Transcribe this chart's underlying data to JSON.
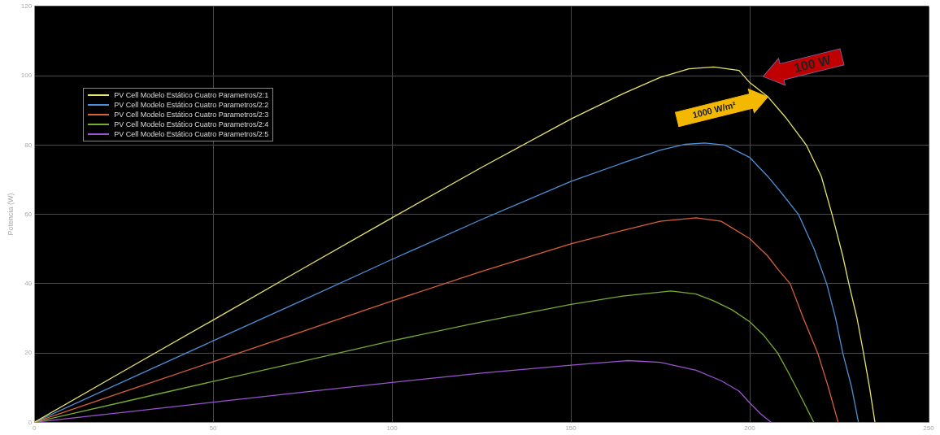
{
  "chart_data": {
    "type": "line",
    "ylabel": "Potencia (W)",
    "xlim": [
      0,
      250
    ],
    "xticks": [
      0,
      50,
      100,
      150,
      200,
      250
    ],
    "ylim": [
      0,
      120
    ],
    "yticks": [
      0,
      20,
      40,
      60,
      80,
      100,
      120
    ],
    "grid": true,
    "legend": "top left",
    "marker": "none",
    "line_style": "solid",
    "annotations": [
      "100 W",
      "1000 W/m²"
    ],
    "series": [
      {
        "name": "PV Cell Modelo Estático Cuatro Parametros/2:1",
        "color": "#e6e46a",
        "x": [
          0,
          25,
          50,
          75,
          100,
          125,
          150,
          165,
          175,
          183,
          190,
          197,
          200,
          205,
          210,
          215.8,
          220,
          223,
          226,
          227.7,
          230,
          231.8,
          233.5,
          235
        ],
        "values": [
          0,
          14.8,
          29.5,
          44.3,
          59,
          73.5,
          87.5,
          95,
          99.5,
          102,
          102.5,
          101.5,
          98,
          94,
          88,
          80,
          71,
          60,
          48,
          40,
          30,
          20,
          10,
          0
        ]
      },
      {
        "name": "PV Cell Modelo Estático Cuatro Parametros/2:2",
        "color": "#4d8fd6",
        "x": [
          0,
          25,
          50,
          75,
          100,
          125,
          150,
          165,
          175,
          182,
          187.4,
          193,
          200,
          205,
          209,
          213.6,
          218,
          221.5,
          224,
          226,
          228.5,
          230.4
        ],
        "values": [
          0,
          11.8,
          23.5,
          35.2,
          47,
          58.5,
          69.5,
          75,
          78.5,
          80.2,
          80.6,
          80,
          76.4,
          71,
          66,
          60,
          50,
          40,
          30,
          20,
          10,
          0
        ]
      },
      {
        "name": "PV Cell Modelo Estático Cuatro Parametros/2:3",
        "color": "#d9603b",
        "x": [
          0,
          25,
          50,
          75,
          100,
          125,
          150,
          165,
          175,
          185,
          192,
          200,
          205,
          208,
          211.3,
          215,
          219,
          222,
          224.7
        ],
        "values": [
          0,
          8.8,
          17.5,
          26.2,
          35,
          43.5,
          51.5,
          55.5,
          58,
          59,
          58,
          53,
          48,
          44,
          40,
          30,
          20,
          10,
          0
        ]
      },
      {
        "name": "PV Cell Modelo Estático Cuatro Parametros/2:4",
        "color": "#77ac30",
        "x": [
          0,
          25,
          50,
          75,
          100,
          125,
          150,
          165,
          178,
          185,
          190,
          195,
          200,
          204,
          207.8,
          211,
          214,
          217.9
        ],
        "values": [
          0,
          5.9,
          11.8,
          17.6,
          23.5,
          29,
          34,
          36.5,
          37.9,
          37,
          35,
          32.5,
          29,
          25,
          20,
          14,
          8,
          0
        ]
      },
      {
        "name": "PV Cell Modelo Estático Cuatro Parametros/2:5",
        "color": "#9a52d0",
        "x": [
          0,
          25,
          50,
          75,
          100,
          125,
          150,
          166,
          175,
          185,
          192,
          197,
          200,
          203,
          206
        ],
        "values": [
          0,
          2.9,
          5.8,
          8.7,
          11.5,
          14.2,
          16.5,
          17.8,
          17.3,
          15,
          12,
          9,
          5.6,
          2.5,
          0
        ]
      }
    ]
  }
}
